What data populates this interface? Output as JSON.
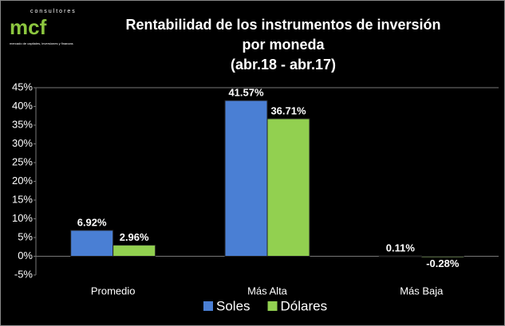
{
  "logo": {
    "tagline": "consultores",
    "brand": "mcf",
    "subtitle": "mercado de capitales, inversiones y finanzas"
  },
  "chart_data": {
    "type": "bar",
    "title": [
      "Rentabilidad de los instrumentos de inversión",
      "por moneda",
      "(abr.18 - abr.17)"
    ],
    "categories": [
      "Promedio",
      "Más Alta",
      "Más Baja"
    ],
    "series": [
      {
        "name": "Soles",
        "color": "#4a7fd4",
        "values": [
          6.92,
          41.57,
          0.11
        ],
        "value_labels": [
          "6.92%",
          "41.57%",
          "0.11%"
        ]
      },
      {
        "name": "Dólares",
        "color": "#92d050",
        "values": [
          2.96,
          36.71,
          -0.28
        ],
        "value_labels": [
          "2.96%",
          "36.71%",
          "-0.28%"
        ]
      }
    ],
    "ylim": [
      -5,
      45
    ],
    "yticks": [
      {
        "value": -5,
        "label": "-5%"
      },
      {
        "value": 0,
        "label": "0%"
      },
      {
        "value": 5,
        "label": "5%"
      },
      {
        "value": 10,
        "label": "10%"
      },
      {
        "value": 15,
        "label": "15%"
      },
      {
        "value": 20,
        "label": "20%"
      },
      {
        "value": 25,
        "label": "25%"
      },
      {
        "value": 30,
        "label": "30%"
      },
      {
        "value": 35,
        "label": "35%"
      },
      {
        "value": 40,
        "label": "40%"
      },
      {
        "value": 45,
        "label": "45%"
      }
    ],
    "legend": "bottom"
  }
}
